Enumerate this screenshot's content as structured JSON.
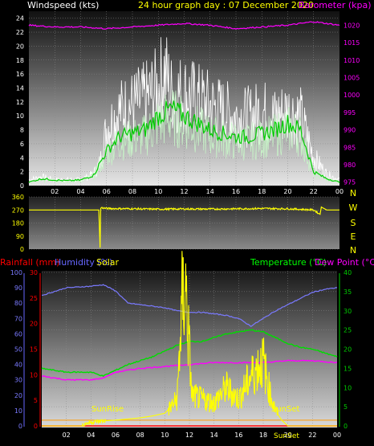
{
  "header": {
    "windspeed_label": "Windspeed (kts)",
    "graph_title": "24 hour graph day : 07 December 2020",
    "barometer_label": "Barometer (kpa)"
  },
  "direction_labels": [
    "N",
    "W",
    "S",
    "E",
    "N"
  ],
  "bottom_header": {
    "rainfall_label": "Rainfall (mm)",
    "humidity_label": "Humidity (%)",
    "solar_label": "Solar",
    "temperature_label": "Temperature (°C)",
    "dewpoint_label": "Dew Point (°C)"
  },
  "annotations": {
    "sunrise": "SunRise",
    "sunset": "SunSet",
    "sunset_bottom": "SunSet"
  },
  "colors": {
    "white": "#ffffff",
    "green": "#00cc00",
    "magenta": "#ff00ff",
    "yellow": "#ffff00",
    "red": "#ff0000",
    "blue": "#6666ff",
    "humidity": "#7a7aff",
    "temp_green": "#00dd00",
    "grid": "#8a8a8a"
  },
  "chart_data": [
    {
      "type": "line",
      "title": "24 hour graph day : 07 December 2020",
      "x_ticks": [
        "02",
        "04",
        "06",
        "08",
        "10",
        "12",
        "14",
        "16",
        "18",
        "20",
        "22",
        "00"
      ],
      "ylabel_left": "Windspeed (kts)",
      "ylim_left": [
        0,
        25
      ],
      "y_ticks_left": [
        0,
        2,
        4,
        6,
        8,
        10,
        12,
        14,
        16,
        18,
        20,
        22,
        24
      ],
      "ylabel_right": "Barometer (kpa)",
      "ylim_right": [
        974,
        1024
      ],
      "y_ticks_right": [
        975,
        980,
        985,
        990,
        995,
        1000,
        1005,
        1010,
        1015,
        1020
      ],
      "series": [
        {
          "hours": [
            0,
            1,
            2,
            3,
            4,
            5,
            5.5,
            6,
            7,
            8,
            9,
            10,
            10.5,
            11,
            12,
            13,
            14,
            15,
            16,
            17,
            18,
            19,
            20,
            21,
            22,
            23,
            24
          ],
          "values": [
            1,
            1.5,
            1,
            1,
            1,
            2,
            4,
            10,
            13,
            14,
            15,
            17,
            20,
            16,
            16,
            15,
            14,
            13,
            12,
            12,
            13,
            12,
            13,
            12,
            5,
            2,
            1
          ]
        },
        {
          "hours": [
            0,
            1,
            2,
            3,
            4,
            5,
            6,
            7,
            8,
            9,
            10,
            11,
            12,
            13,
            14,
            15,
            16,
            17,
            18,
            19,
            20,
            21,
            22,
            23,
            24
          ],
          "values": [
            0.5,
            1,
            0.8,
            0.7,
            0.8,
            1.5,
            5,
            7,
            7.5,
            8,
            10,
            11,
            10,
            9,
            8,
            7.5,
            7,
            7,
            7.5,
            8,
            9,
            8,
            2,
            1,
            0.5
          ]
        },
        {
          "hours": [
            0,
            2,
            4,
            6,
            8,
            10,
            12,
            14,
            16,
            18,
            20,
            22,
            24
          ],
          "values": [
            1020,
            1019.5,
            1019.5,
            1019,
            1019.5,
            1020,
            1020.5,
            1020,
            1019,
            1019.5,
            1020,
            1021,
            1020
          ]
        }
      ]
    },
    {
      "type": "line",
      "x_ticks": [],
      "y_ticks": [
        0,
        90,
        180,
        270,
        360
      ],
      "ylim": [
        0,
        360
      ],
      "series": [
        {
          "hours": [
            0,
            5.4,
            5.5,
            5.55,
            5.6,
            6,
            8,
            10,
            12,
            14,
            16,
            18,
            20,
            22,
            22.5,
            22.6,
            23,
            24
          ],
          "values": [
            270,
            270,
            10,
            280,
            285,
            280,
            278,
            275,
            277,
            276,
            278,
            280,
            278,
            270,
            240,
            290,
            270,
            270
          ]
        }
      ]
    },
    {
      "type": "line",
      "x_ticks": [
        "02",
        "04",
        "06",
        "08",
        "10",
        "12",
        "14",
        "16",
        "18",
        "20",
        "22",
        "00"
      ],
      "ylabel_left_1": "Humidity (%)",
      "y_ticks_humidity": [
        0,
        10,
        20,
        30,
        40,
        50,
        60,
        70,
        80,
        90,
        100
      ],
      "ylabel_left_2": "Rainfall (mm)",
      "y_ticks_rain": [
        0,
        5,
        10,
        15,
        20,
        25,
        30
      ],
      "ylabel_right": "Temperature (°C)",
      "y_ticks_temp": [
        0,
        5,
        10,
        15,
        20,
        25,
        30,
        35,
        40
      ],
      "series": [
        {
          "name": "Humidity (%)",
          "hours": [
            0,
            2,
            4,
            5,
            6,
            7,
            8,
            9,
            10,
            11,
            12,
            13,
            14,
            15,
            16,
            17,
            18,
            19,
            20,
            21,
            22,
            23,
            24
          ],
          "values": [
            85,
            90,
            91,
            92,
            88,
            80,
            79,
            78,
            77,
            75,
            74,
            74,
            73,
            72,
            70,
            65,
            70,
            75,
            79,
            83,
            87,
            89,
            90
          ]
        },
        {
          "name": "Temperature (°C)",
          "hours": [
            0,
            2,
            4,
            5,
            6,
            7,
            8,
            9,
            10,
            11,
            12,
            13,
            14,
            15,
            16,
            17,
            18,
            19,
            20,
            21,
            22,
            23,
            24
          ],
          "values": [
            15,
            14,
            14,
            13,
            14.5,
            16,
            17,
            18,
            19.5,
            21,
            22,
            22,
            23,
            24,
            24.5,
            25,
            24.5,
            23,
            21.5,
            20.5,
            20,
            19,
            18
          ]
        },
        {
          "name": "Dew Point (°C)",
          "hours": [
            0,
            2,
            4,
            5,
            6,
            7,
            8,
            10,
            12,
            14,
            16,
            18,
            20,
            22,
            24
          ],
          "values": [
            13,
            12,
            12,
            12.5,
            14,
            14.5,
            15,
            15.5,
            16,
            16.5,
            16.5,
            16.5,
            17,
            17,
            16.5
          ]
        },
        {
          "name": "Solar",
          "hours": [
            0,
            3.3,
            3.5,
            4,
            5,
            6,
            7,
            8,
            9,
            10,
            10.5,
            11,
            11.4,
            11.7,
            11.9,
            12.2,
            13,
            14,
            15,
            16,
            17,
            18,
            18.3,
            18.6,
            19,
            19.5,
            20,
            24
          ],
          "values": [
            0,
            0,
            0.5,
            1,
            1.3,
            1.5,
            1.8,
            2.1,
            2.6,
            3.3,
            5,
            7,
            32,
            36,
            25,
            8,
            7,
            6,
            10,
            7,
            13,
            17,
            12,
            8,
            4,
            1.5,
            0,
            0
          ]
        },
        {
          "name": "Rainfall (mm)",
          "hours": [
            0,
            24
          ],
          "values": [
            0,
            0
          ]
        }
      ]
    }
  ]
}
